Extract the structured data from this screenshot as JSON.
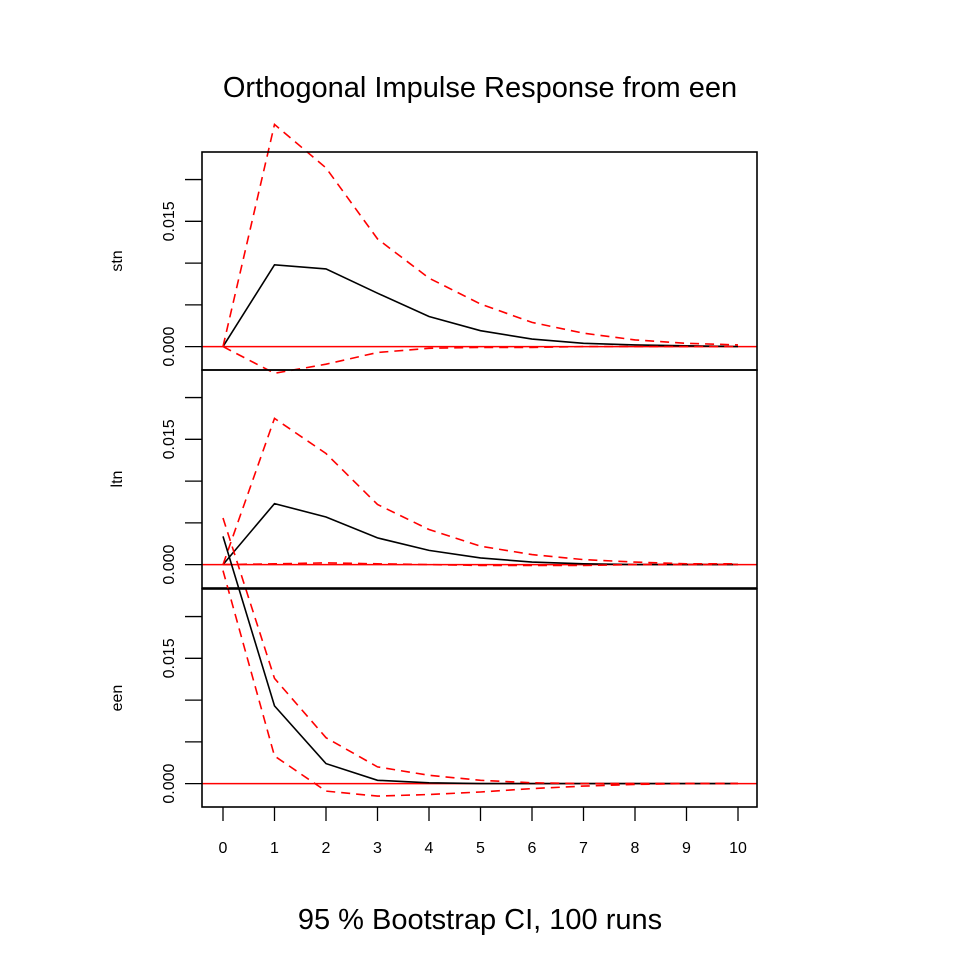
{
  "chart_data": {
    "type": "line",
    "title": "Orthogonal Impulse Response from een",
    "subtitle": "95 % Bootstrap CI,  100 runs",
    "x": [
      0,
      1,
      2,
      3,
      4,
      5,
      6,
      7,
      8,
      9,
      10
    ],
    "x_ticks": [
      "0",
      "1",
      "2",
      "3",
      "4",
      "5",
      "6",
      "7",
      "8",
      "9",
      "10"
    ],
    "ylim": [
      -0.0028,
      0.0233
    ],
    "y_ticks": [
      0.0,
      0.015
    ],
    "y_tick_labels": [
      "0.000",
      "0.015"
    ],
    "zero_line_color": "#ff0000",
    "irf_color": "#000000",
    "ci_color": "#ff0000",
    "panels": [
      {
        "name": "stn",
        "series": [
          {
            "role": "irf",
            "values": [
              0.0,
              0.0098,
              0.0093,
              0.0064,
              0.0036,
              0.0019,
              0.0009,
              0.0004,
              0.0002,
              0.0001,
              0.0
            ]
          },
          {
            "role": "upper",
            "values": [
              0.0,
              0.0266,
              0.0214,
              0.0129,
              0.0082,
              0.0051,
              0.0029,
              0.0016,
              0.0008,
              0.0004,
              0.0002
            ]
          },
          {
            "role": "lower",
            "values": [
              0.0,
              -0.0032,
              -0.0021,
              -0.0007,
              -0.0002,
              -0.0001,
              -0.0001,
              0.0,
              0.0,
              0.0,
              0.0
            ]
          }
        ]
      },
      {
        "name": "ltn",
        "series": [
          {
            "role": "irf",
            "values": [
              0.0,
              0.0073,
              0.0057,
              0.0032,
              0.0017,
              0.0008,
              0.0003,
              0.0001,
              0.0,
              0.0,
              0.0
            ]
          },
          {
            "role": "upper",
            "values": [
              0.0,
              0.0175,
              0.0133,
              0.0072,
              0.0042,
              0.0022,
              0.0012,
              0.0006,
              0.0003,
              0.0001,
              0.0001
            ]
          },
          {
            "role": "lower",
            "values": [
              0.0,
              0.0001,
              0.0002,
              0.0001,
              0.0,
              -0.0001,
              -0.0001,
              -0.0001,
              0.0,
              0.0,
              0.0
            ]
          }
        ]
      },
      {
        "name": "een",
        "series": [
          {
            "role": "irf",
            "values": [
              0.0296,
              0.0093,
              0.0024,
              0.0004,
              0.0001,
              0.0,
              0.0,
              0.0,
              0.0,
              0.0,
              0.0
            ]
          },
          {
            "role": "upper",
            "values": [
              0.0318,
              0.0126,
              0.0055,
              0.002,
              0.001,
              0.0004,
              0.0001,
              0.0,
              0.0,
              0.0,
              0.0
            ]
          },
          {
            "role": "lower",
            "values": [
              0.0255,
              0.0033,
              -0.0009,
              -0.0015,
              -0.0013,
              -0.001,
              -0.0006,
              -0.0003,
              -0.0001,
              0.0,
              0.0
            ]
          }
        ]
      }
    ]
  }
}
